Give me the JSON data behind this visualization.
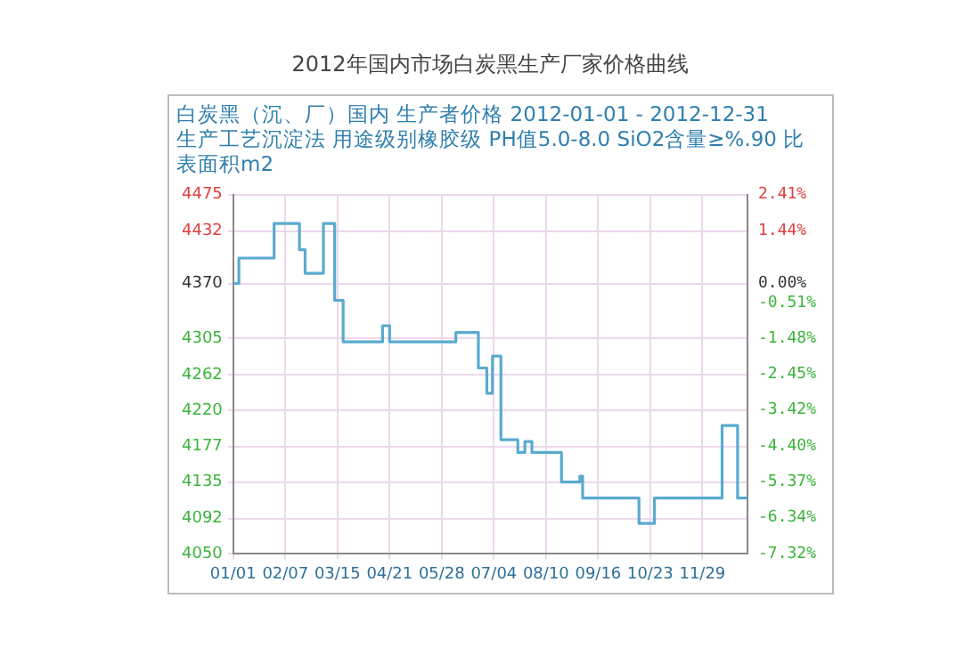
{
  "chart_data": {
    "type": "step",
    "title": "2012年国内市场白炭黑生产厂家价格曲线",
    "subtitle": "白炭黑（沉、厂）国内 生产者价格 2012-01-01 - 2012-12-31\n生产工艺沉淀法 用途级别橡胶级 PH值5.0-8.0 SiO2含量≥%.90 比表面积m2",
    "x": [
      "2012-01-01",
      "2012-01-05",
      "2012-01-30",
      "2012-02-17",
      "2012-02-21",
      "2012-03-05",
      "2012-03-13",
      "2012-03-19",
      "2012-04-16",
      "2012-04-21",
      "2012-06-07",
      "2012-06-23",
      "2012-06-29",
      "2012-07-03",
      "2012-07-09",
      "2012-07-21",
      "2012-07-26",
      "2012-07-31",
      "2012-08-21",
      "2012-09-03",
      "2012-09-05",
      "2012-10-15",
      "2012-10-26",
      "2012-12-13",
      "2012-12-24",
      "2012-12-31"
    ],
    "series": [
      {
        "color": "#5aaad0",
        "values": [
          4370,
          4400,
          4441,
          4410,
          4382,
          4441,
          4350,
          4301,
          4320,
          4301,
          4312,
          4270,
          4240,
          4284,
          4185,
          4170,
          4183,
          4170,
          4135,
          4142,
          4116,
          4086,
          4116,
          4202,
          4116,
          4116
        ]
      }
    ],
    "xlim": [
      "2012-01-01",
      "2012-12-31"
    ],
    "xticks": [
      {
        "value": "2012-01-01",
        "label": "01/01"
      },
      {
        "value": "2012-02-07",
        "label": "02/07"
      },
      {
        "value": "2012-03-15",
        "label": "03/15"
      },
      {
        "value": "2012-04-21",
        "label": "04/21"
      },
      {
        "value": "2012-05-28",
        "label": "05/28"
      },
      {
        "value": "2012-07-04",
        "label": "07/04"
      },
      {
        "value": "2012-08-10",
        "label": "08/10"
      },
      {
        "value": "2012-09-16",
        "label": "09/16"
      },
      {
        "value": "2012-10-23",
        "label": "10/23"
      },
      {
        "value": "2012-11-29",
        "label": "11/29"
      }
    ],
    "ylim": [
      4050,
      4475
    ],
    "yticks": [
      4475,
      4432,
      4370,
      4305,
      4262,
      4220,
      4177,
      4135,
      4092,
      4050
    ],
    "y2lim": [
      -7.32,
      2.41
    ],
    "y2ticks": [
      {
        "value": 2.41,
        "label": "2.41%"
      },
      {
        "value": 1.44,
        "label": "1.44%"
      },
      {
        "value": 0,
        "label": "0.00%"
      },
      {
        "value": -0.51,
        "label": "-0.51%"
      },
      {
        "value": -1.48,
        "label": "-1.48%"
      },
      {
        "value": -2.45,
        "label": "-2.45%"
      },
      {
        "value": -3.42,
        "label": "-3.42%"
      },
      {
        "value": -4.4,
        "label": "-4.40%"
      },
      {
        "value": -5.37,
        "label": "-5.37%"
      },
      {
        "value": -6.34,
        "label": "-6.34%"
      },
      {
        "value": -7.32,
        "label": "-7.32%"
      }
    ],
    "grid": true,
    "legend": false,
    "marker": "none",
    "line_style": "solid"
  }
}
